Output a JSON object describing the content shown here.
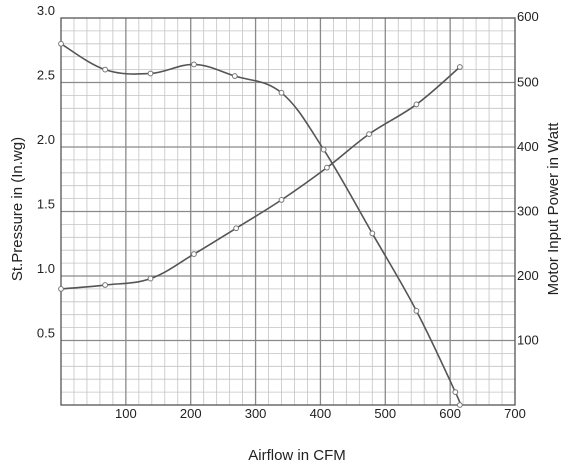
{
  "chart_data": {
    "type": "line",
    "xlabel": "Airflow in CFM",
    "ylabel_left": "St.Pressure in (In.wg)",
    "ylabel_right": "Motor Input Power in Watt",
    "xlim": [
      0,
      700
    ],
    "ylim_left": [
      0,
      3.0
    ],
    "ylim_right": [
      0,
      600
    ],
    "grid": true,
    "x_ticks": [
      "100",
      "200",
      "300",
      "400",
      "500",
      "600",
      "700"
    ],
    "y_left_ticks": [
      "3.0",
      "2.5",
      "2.0",
      "1.5",
      "1.0",
      "0.5"
    ],
    "y_right_ticks": [
      "600",
      "500",
      "400",
      "300",
      "200",
      "100"
    ],
    "series": [
      {
        "axis": "left",
        "x": [
          0,
          68,
          138,
          205,
          268,
          340,
          405,
          480,
          548,
          608,
          615
        ],
        "y": [
          2.8,
          2.6,
          2.57,
          2.64,
          2.55,
          2.42,
          1.98,
          1.33,
          0.73,
          0.1,
          0.0
        ]
      },
      {
        "axis": "right",
        "x": [
          0,
          68,
          138,
          205,
          270,
          340,
          410,
          475,
          548,
          615
        ],
        "y": [
          180,
          186,
          196,
          234,
          274,
          318,
          368,
          420,
          466,
          524
        ]
      }
    ]
  }
}
